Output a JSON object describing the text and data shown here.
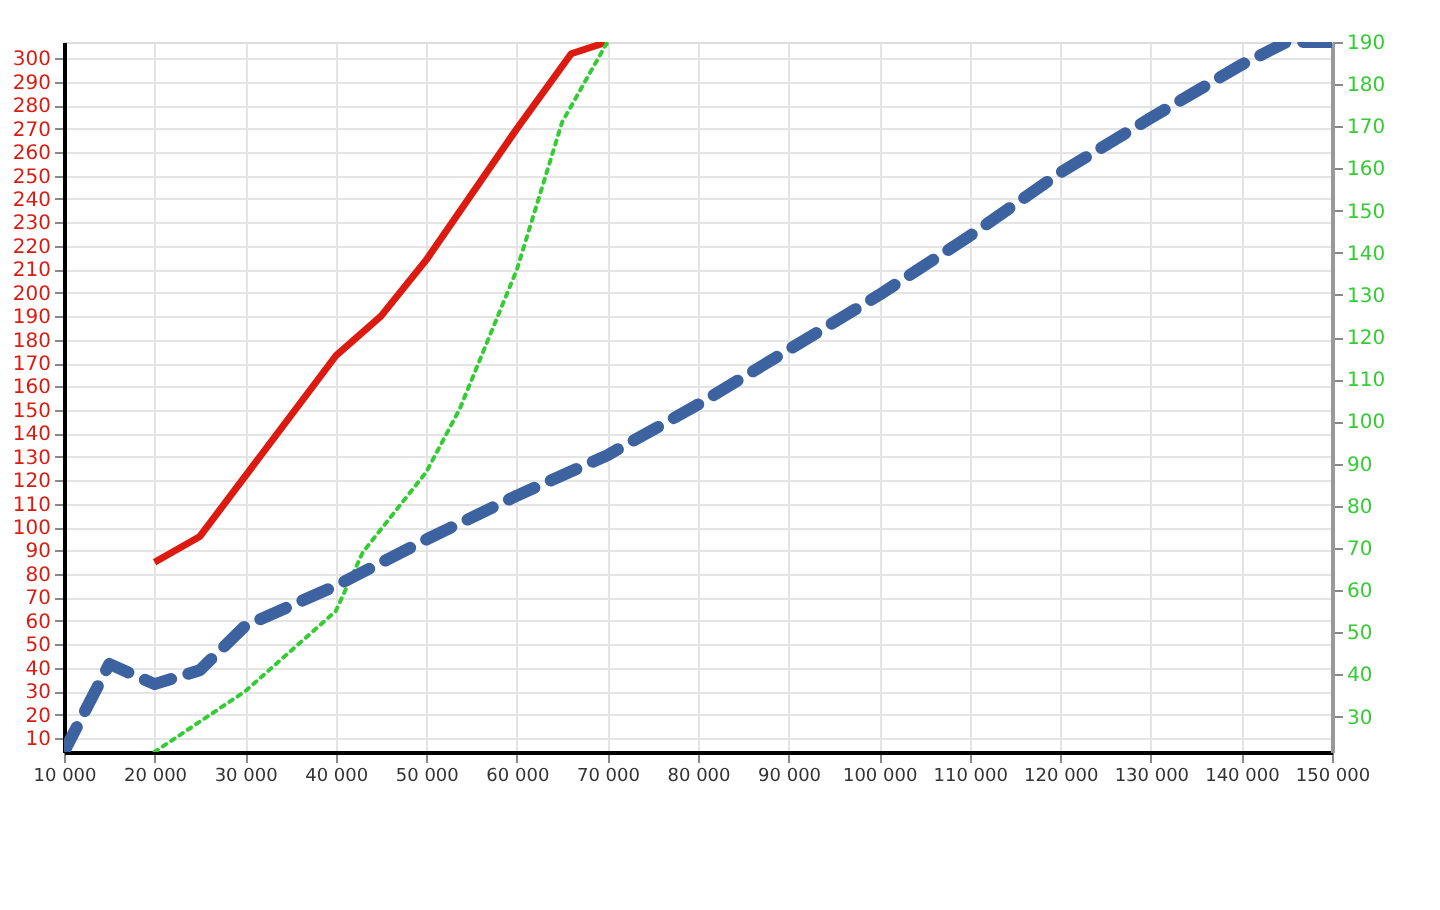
{
  "chart_data": {
    "type": "line",
    "xlim": [
      10000,
      150000
    ],
    "xticks": [
      {
        "value": 10000,
        "label": "10 000"
      },
      {
        "value": 20000,
        "label": "20 000"
      },
      {
        "value": 30000,
        "label": "30 000"
      },
      {
        "value": 40000,
        "label": "40 000"
      },
      {
        "value": 50000,
        "label": "50 000"
      },
      {
        "value": 60000,
        "label": "60 000"
      },
      {
        "value": 70000,
        "label": "70 000"
      },
      {
        "value": 80000,
        "label": "80 000"
      },
      {
        "value": 90000,
        "label": "90 000"
      },
      {
        "value": 100000,
        "label": "100 000"
      },
      {
        "value": 110000,
        "label": "110 000"
      },
      {
        "value": 120000,
        "label": "120 000"
      },
      {
        "value": 130000,
        "label": "130 000"
      },
      {
        "value": 140000,
        "label": "140 000"
      },
      {
        "value": 150000,
        "label": "150 000"
      }
    ],
    "ylim": [
      4,
      307
    ],
    "yticks": [
      10,
      20,
      30,
      40,
      50,
      60,
      70,
      80,
      90,
      100,
      110,
      120,
      130,
      140,
      150,
      160,
      170,
      180,
      190,
      200,
      210,
      220,
      230,
      240,
      250,
      260,
      270,
      280,
      290,
      300
    ],
    "y2lim": [
      21.6,
      190
    ],
    "y2ticks": [
      30,
      40,
      50,
      60,
      70,
      80,
      90,
      100,
      110,
      120,
      130,
      140,
      150,
      160,
      170,
      180,
      190
    ],
    "grid": true,
    "series": [
      {
        "color": "#dd1a10",
        "line_style": "solid",
        "x": [
          20000,
          25000,
          40000,
          45000,
          50000,
          60000,
          66000,
          70000
        ],
        "values": [
          85,
          96,
          173,
          190,
          214,
          270,
          302,
          307
        ]
      },
      {
        "color": "#33cc33",
        "line_style": "dotted",
        "axis": "y2",
        "x": [
          20000,
          30000,
          40000,
          43000,
          50000,
          53700,
          60000,
          65000,
          70000
        ],
        "values": [
          21.6,
          36,
          55,
          69,
          88,
          103,
          136,
          171,
          190
        ]
      },
      {
        "color": "#3d62a0",
        "line_style": "dashed",
        "axis": "y2",
        "x": [
          10000,
          15000,
          20000,
          25000,
          30000,
          40000,
          50000,
          60000,
          70000,
          80000,
          90000,
          100000,
          110000,
          120000,
          130000,
          140000,
          145000,
          150000
        ],
        "values": [
          21.6,
          42.5,
          37.7,
          41,
          51.5,
          61,
          72,
          82.4,
          92,
          104,
          117,
          130,
          144,
          159,
          172,
          184.6,
          190,
          190
        ]
      }
    ]
  }
}
